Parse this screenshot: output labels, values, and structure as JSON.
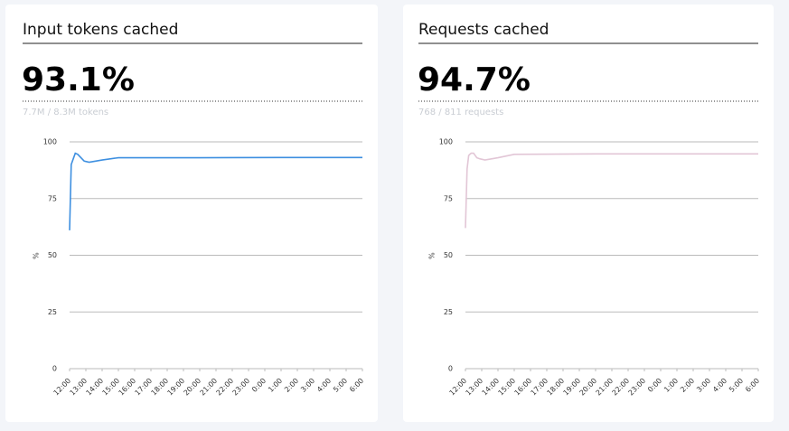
{
  "chart_data": [
    {
      "type": "line",
      "title": "Input tokens cached",
      "headline": "93.1%",
      "subtitle": "7.7M / 8.3M tokens",
      "ylabel": "%",
      "color": "#3d8fe0",
      "x": [
        12,
        12.1,
        12.2,
        12.35,
        12.5,
        12.7,
        12.9,
        13.2,
        13.6,
        14,
        15,
        20,
        25,
        30
      ],
      "values": [
        61,
        90,
        92,
        95,
        94.5,
        93,
        91.5,
        91,
        91.5,
        92,
        93,
        93,
        93.1,
        93.1
      ],
      "xlim": [
        12,
        30
      ],
      "xticks": [
        {
          "value": 12,
          "label": "12:00"
        },
        {
          "value": 13,
          "label": "13:00"
        },
        {
          "value": 14,
          "label": "14:00"
        },
        {
          "value": 15,
          "label": "15:00"
        },
        {
          "value": 16,
          "label": "16:00"
        },
        {
          "value": 17,
          "label": "17:00"
        },
        {
          "value": 18,
          "label": "18:00"
        },
        {
          "value": 19,
          "label": "19:00"
        },
        {
          "value": 20,
          "label": "20:00"
        },
        {
          "value": 21,
          "label": "21:00"
        },
        {
          "value": 22,
          "label": "22:00"
        },
        {
          "value": 23,
          "label": "23:00"
        },
        {
          "value": 24,
          "label": "0:00"
        },
        {
          "value": 25,
          "label": "1:00"
        },
        {
          "value": 26,
          "label": "2:00"
        },
        {
          "value": 27,
          "label": "3:00"
        },
        {
          "value": 28,
          "label": "4:00"
        },
        {
          "value": 29,
          "label": "5:00"
        },
        {
          "value": 30,
          "label": "6:00"
        }
      ],
      "ylim": [
        0,
        100
      ],
      "yticks": [
        0,
        25,
        50,
        75,
        100
      ],
      "grid": true
    },
    {
      "type": "line",
      "title": "Requests cached",
      "headline": "94.7%",
      "subtitle": "768 / 811 requests",
      "ylabel": "%",
      "color": "#e2c6d6",
      "x": [
        12,
        12.1,
        12.2,
        12.35,
        12.5,
        12.7,
        12.9,
        13.2,
        13.6,
        14,
        15,
        20,
        25,
        30
      ],
      "values": [
        62,
        88,
        94,
        95,
        95,
        93,
        92.5,
        92,
        92.5,
        93,
        94.5,
        94.7,
        94.7,
        94.7
      ],
      "xlim": [
        12,
        30
      ],
      "xticks": [
        {
          "value": 12,
          "label": "12:00"
        },
        {
          "value": 13,
          "label": "13:00"
        },
        {
          "value": 14,
          "label": "14:00"
        },
        {
          "value": 15,
          "label": "15:00"
        },
        {
          "value": 16,
          "label": "16:00"
        },
        {
          "value": 17,
          "label": "17:00"
        },
        {
          "value": 18,
          "label": "18:00"
        },
        {
          "value": 19,
          "label": "19:00"
        },
        {
          "value": 20,
          "label": "20:00"
        },
        {
          "value": 21,
          "label": "21:00"
        },
        {
          "value": 22,
          "label": "22:00"
        },
        {
          "value": 23,
          "label": "23:00"
        },
        {
          "value": 24,
          "label": "0:00"
        },
        {
          "value": 25,
          "label": "1:00"
        },
        {
          "value": 26,
          "label": "2:00"
        },
        {
          "value": 27,
          "label": "3:00"
        },
        {
          "value": 28,
          "label": "4:00"
        },
        {
          "value": 29,
          "label": "5:00"
        },
        {
          "value": 30,
          "label": "6:00"
        }
      ],
      "ylim": [
        0,
        100
      ],
      "yticks": [
        0,
        25,
        50,
        75,
        100
      ],
      "grid": true
    }
  ]
}
